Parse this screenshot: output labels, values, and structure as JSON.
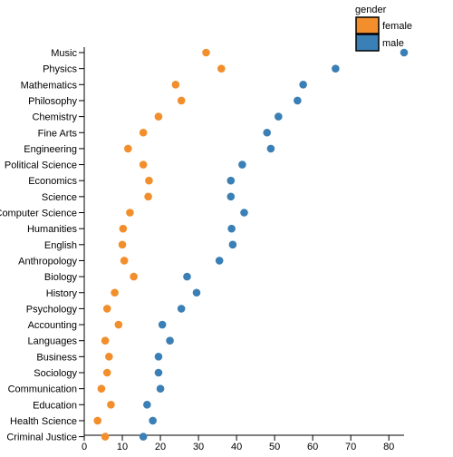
{
  "chart_data": {
    "type": "scatter",
    "categories": [
      "Music",
      "Physics",
      "Mathematics",
      "Philosophy",
      "Chemistry",
      "Fine Arts",
      "Engineering",
      "Political Science",
      "Economics",
      "Science",
      "Computer Science",
      "Humanities",
      "English",
      "Anthropology",
      "Biology",
      "History",
      "Psychology",
      "Accounting",
      "Languages",
      "Business",
      "Sociology",
      "Communication",
      "Education",
      "Health Science",
      "Criminal Justice"
    ],
    "series": [
      {
        "name": "female",
        "color": "#f28e2b",
        "values": [
          32,
          36,
          24,
          25.5,
          19.5,
          15.5,
          11.5,
          15.5,
          17,
          16.8,
          12,
          10.2,
          10,
          10.5,
          13,
          8,
          6,
          9,
          5.5,
          6.5,
          6,
          4.5,
          7,
          3.5,
          5.5
        ]
      },
      {
        "name": "male",
        "color": "#3a7fb5",
        "values": [
          84,
          66,
          57.5,
          56,
          51,
          48,
          49,
          41.5,
          38.5,
          38.5,
          42,
          38.7,
          39,
          35.5,
          27,
          29.5,
          25.5,
          20.5,
          22.5,
          19.5,
          19.5,
          20,
          16.5,
          18,
          15.5
        ]
      }
    ],
    "xlim": [
      0,
      84
    ],
    "xticks": [
      "0",
      "10",
      "20",
      "30",
      "40",
      "50",
      "60",
      "70",
      "80"
    ],
    "legend_title": "gender",
    "legend_placement": "top-right",
    "xlabel": "",
    "ylabel": "",
    "title": ""
  }
}
